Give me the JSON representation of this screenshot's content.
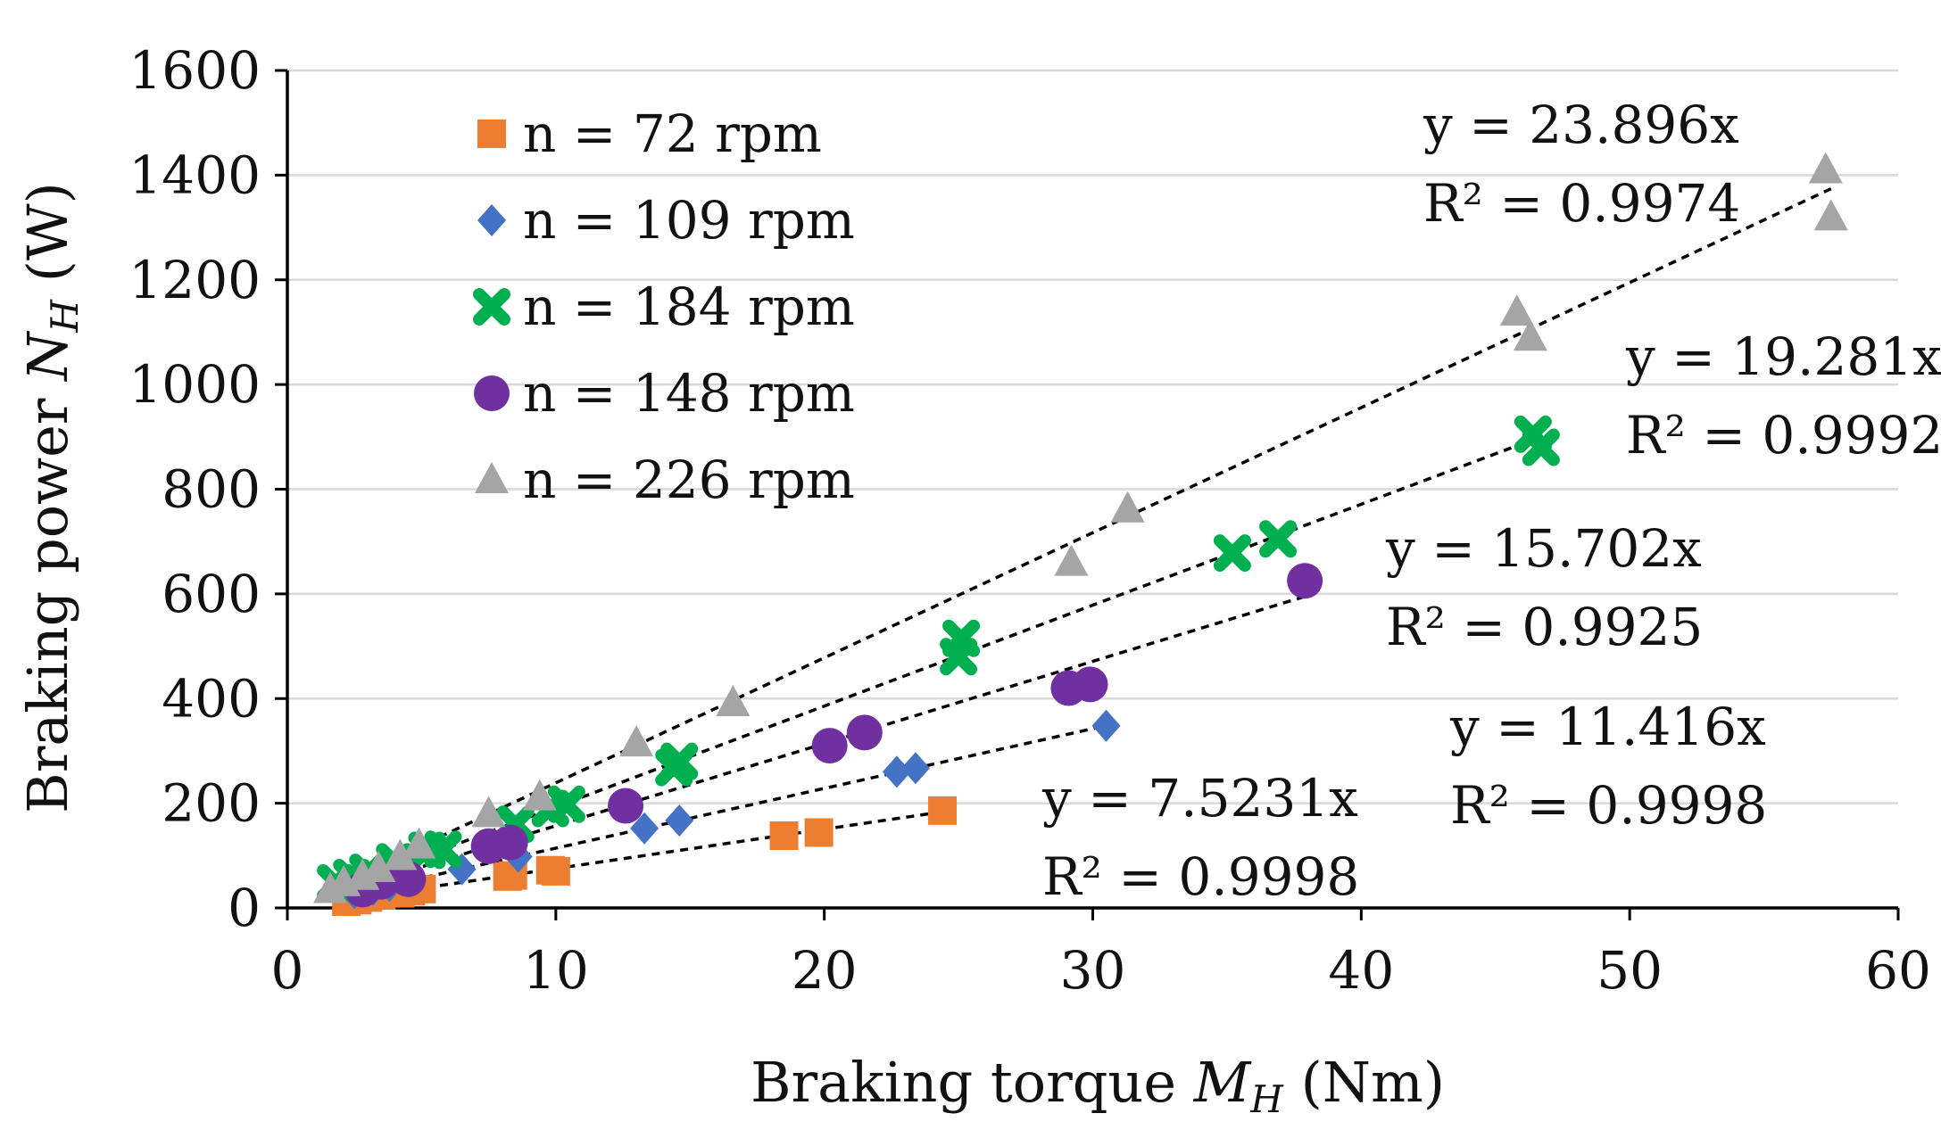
{
  "chart_data": {
    "type": "scatter",
    "title": "",
    "xlabel": {
      "main": "Braking torque ",
      "var": "M",
      "sub": "H",
      "unit": " (Nm)"
    },
    "ylabel": {
      "main": "Braking power ",
      "var": "N",
      "sub": "H",
      "unit": " (W)"
    },
    "xlim": [
      0,
      60
    ],
    "ylim": [
      0,
      1600
    ],
    "xticks": [
      0,
      10,
      20,
      30,
      40,
      50,
      60
    ],
    "yticks": [
      0,
      200,
      400,
      600,
      800,
      1000,
      1200,
      1400,
      1600
    ],
    "grid": "horizontal",
    "legend_position": "top-left",
    "series": [
      {
        "name": "n = 72 rpm",
        "marker": "square",
        "color": "#ED7D31",
        "slope": 7.5231,
        "trend_range": [
          2,
          24.5
        ],
        "equation": "y = 7.5231x",
        "r2": "R² = 0.9998",
        "points": [
          [
            2.2,
            12
          ],
          [
            2.6,
            15
          ],
          [
            3,
            20
          ],
          [
            3.5,
            24
          ],
          [
            4.2,
            28
          ],
          [
            4.6,
            32
          ],
          [
            5,
            36
          ],
          [
            8.2,
            60
          ],
          [
            8.4,
            62
          ],
          [
            9.8,
            72
          ],
          [
            10,
            70
          ],
          [
            18.5,
            138
          ],
          [
            19.8,
            144
          ],
          [
            24.4,
            186
          ]
        ]
      },
      {
        "name": "n = 109 rpm",
        "marker": "diamond",
        "color": "#4472C4",
        "slope": 11.416,
        "trend_range": [
          2,
          30.5
        ],
        "equation": "y = 11.416x",
        "r2": "R² = 0.9998",
        "points": [
          [
            2.5,
            28
          ],
          [
            3.2,
            35
          ],
          [
            3.8,
            42
          ],
          [
            4.5,
            50
          ],
          [
            6.5,
            74
          ],
          [
            8.6,
            98
          ],
          [
            13.3,
            152
          ],
          [
            14.6,
            167
          ],
          [
            22.7,
            260
          ],
          [
            23.4,
            267
          ],
          [
            30.5,
            348
          ]
        ]
      },
      {
        "name": "n = 184 rpm",
        "marker": "cross",
        "color": "#00B050",
        "slope": 19.281,
        "trend_range": [
          2,
          46.7
        ],
        "equation": "y = 19.281x",
        "r2": "R² = 0.9992",
        "points": [
          [
            1.8,
            48
          ],
          [
            2.4,
            58
          ],
          [
            3,
            68
          ],
          [
            4,
            88
          ],
          [
            5.2,
            110
          ],
          [
            5.8,
            112
          ],
          [
            8.5,
            160
          ],
          [
            9.8,
            190
          ],
          [
            10.4,
            198
          ],
          [
            14.4,
            268
          ],
          [
            14.6,
            280
          ],
          [
            25,
            480
          ],
          [
            25.1,
            515
          ],
          [
            35.2,
            678
          ],
          [
            36.9,
            705
          ],
          [
            46.4,
            905
          ],
          [
            46.7,
            880
          ]
        ]
      },
      {
        "name": "n = 148 rpm",
        "marker": "circle",
        "color": "#7030A0",
        "slope": 15.702,
        "trend_range": [
          2,
          38
        ],
        "equation": "y = 15.702x",
        "r2": "R² = 0.9925",
        "points": [
          [
            2.8,
            35
          ],
          [
            3.5,
            50
          ],
          [
            4.5,
            55
          ],
          [
            7.5,
            118
          ],
          [
            8.3,
            125
          ],
          [
            12.6,
            195
          ],
          [
            20.2,
            310
          ],
          [
            21.5,
            335
          ],
          [
            29.1,
            420
          ],
          [
            29.9,
            427
          ],
          [
            37.9,
            625
          ]
        ]
      },
      {
        "name": "n = 226 rpm",
        "marker": "triangle",
        "color": "#A5A5A5",
        "slope": 23.896,
        "trend_range": [
          1.8,
          57.5
        ],
        "equation": "y = 23.896x",
        "r2": "R² = 0.9974",
        "points": [
          [
            1.6,
            35
          ],
          [
            2.1,
            48
          ],
          [
            2.8,
            60
          ],
          [
            3.4,
            75
          ],
          [
            4.2,
            98
          ],
          [
            4.9,
            120
          ],
          [
            7.5,
            180
          ],
          [
            9.4,
            212
          ],
          [
            13,
            315
          ],
          [
            16.6,
            392
          ],
          [
            29.2,
            660
          ],
          [
            31.3,
            762
          ],
          [
            45.8,
            1138
          ],
          [
            46.3,
            1090
          ],
          [
            57.3,
            1410
          ],
          [
            57.5,
            1320
          ]
        ]
      }
    ],
    "equation_labels": [
      {
        "series": 4,
        "equation": "y = 23.896x",
        "r2": "R² = 0.9974"
      },
      {
        "series": 2,
        "equation": "y = 19.281x",
        "r2": "R² = 0.9992"
      },
      {
        "series": 3,
        "equation": "y = 15.702x",
        "r2": "R² = 0.9925"
      },
      {
        "series": 1,
        "equation": "y = 11.416x",
        "r2": "R² = 0.9998"
      },
      {
        "series": 0,
        "equation": "y = 7.5231x",
        "r2": "R² = 0.9998"
      }
    ]
  }
}
